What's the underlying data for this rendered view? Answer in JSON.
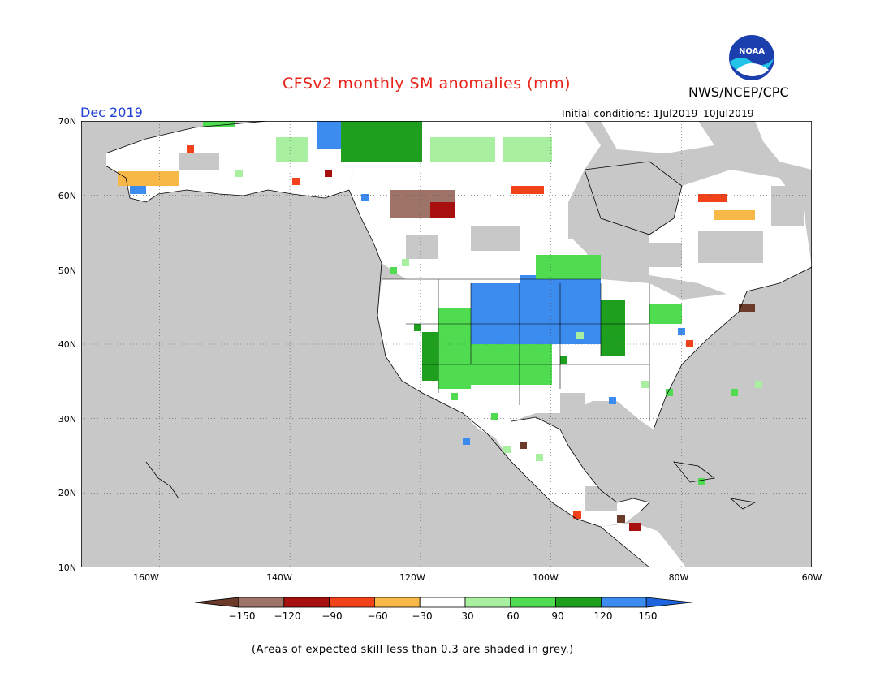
{
  "title": "CFSv2 monthly SM anomalies (mm)",
  "valid_month": "Dec 2019",
  "agency": "NWS/NCEP/CPC",
  "initial_conditions": "Initial conditions: 1Jul2019–10Jul2019",
  "footnote": "(Areas of expected skill less than 0.3 are shaded in grey.)",
  "logo": {
    "text": "NOAA",
    "icon": "noaa-logo-icon"
  },
  "map": {
    "latitude_labels": [
      "70N",
      "60N",
      "50N",
      "40N",
      "30N",
      "20N",
      "10N"
    ],
    "longitude_labels": [
      "160W",
      "140W",
      "120W",
      "100W",
      "80W",
      "60W"
    ],
    "extent": {
      "lon_min": -172,
      "lon_max": -60,
      "lat_min": 10,
      "lat_max": 70
    },
    "grid": "dotted",
    "colors": {
      "no_skill": "#c8c8c8",
      "ocean": "#c8c8c8",
      "border": "#000000"
    }
  },
  "colorbar": {
    "labels": [
      "−150",
      "−120",
      "−90",
      "−60",
      "−30",
      "30",
      "60",
      "90",
      "120",
      "150"
    ],
    "colors": [
      "#6b3a28",
      "#9e7468",
      "#a80f0f",
      "#f2421a",
      "#f8b848",
      "#ffffff",
      "#a8f0a0",
      "#50dc50",
      "#1ea01e",
      "#3c8cf0",
      "#1e64dc"
    ]
  }
}
